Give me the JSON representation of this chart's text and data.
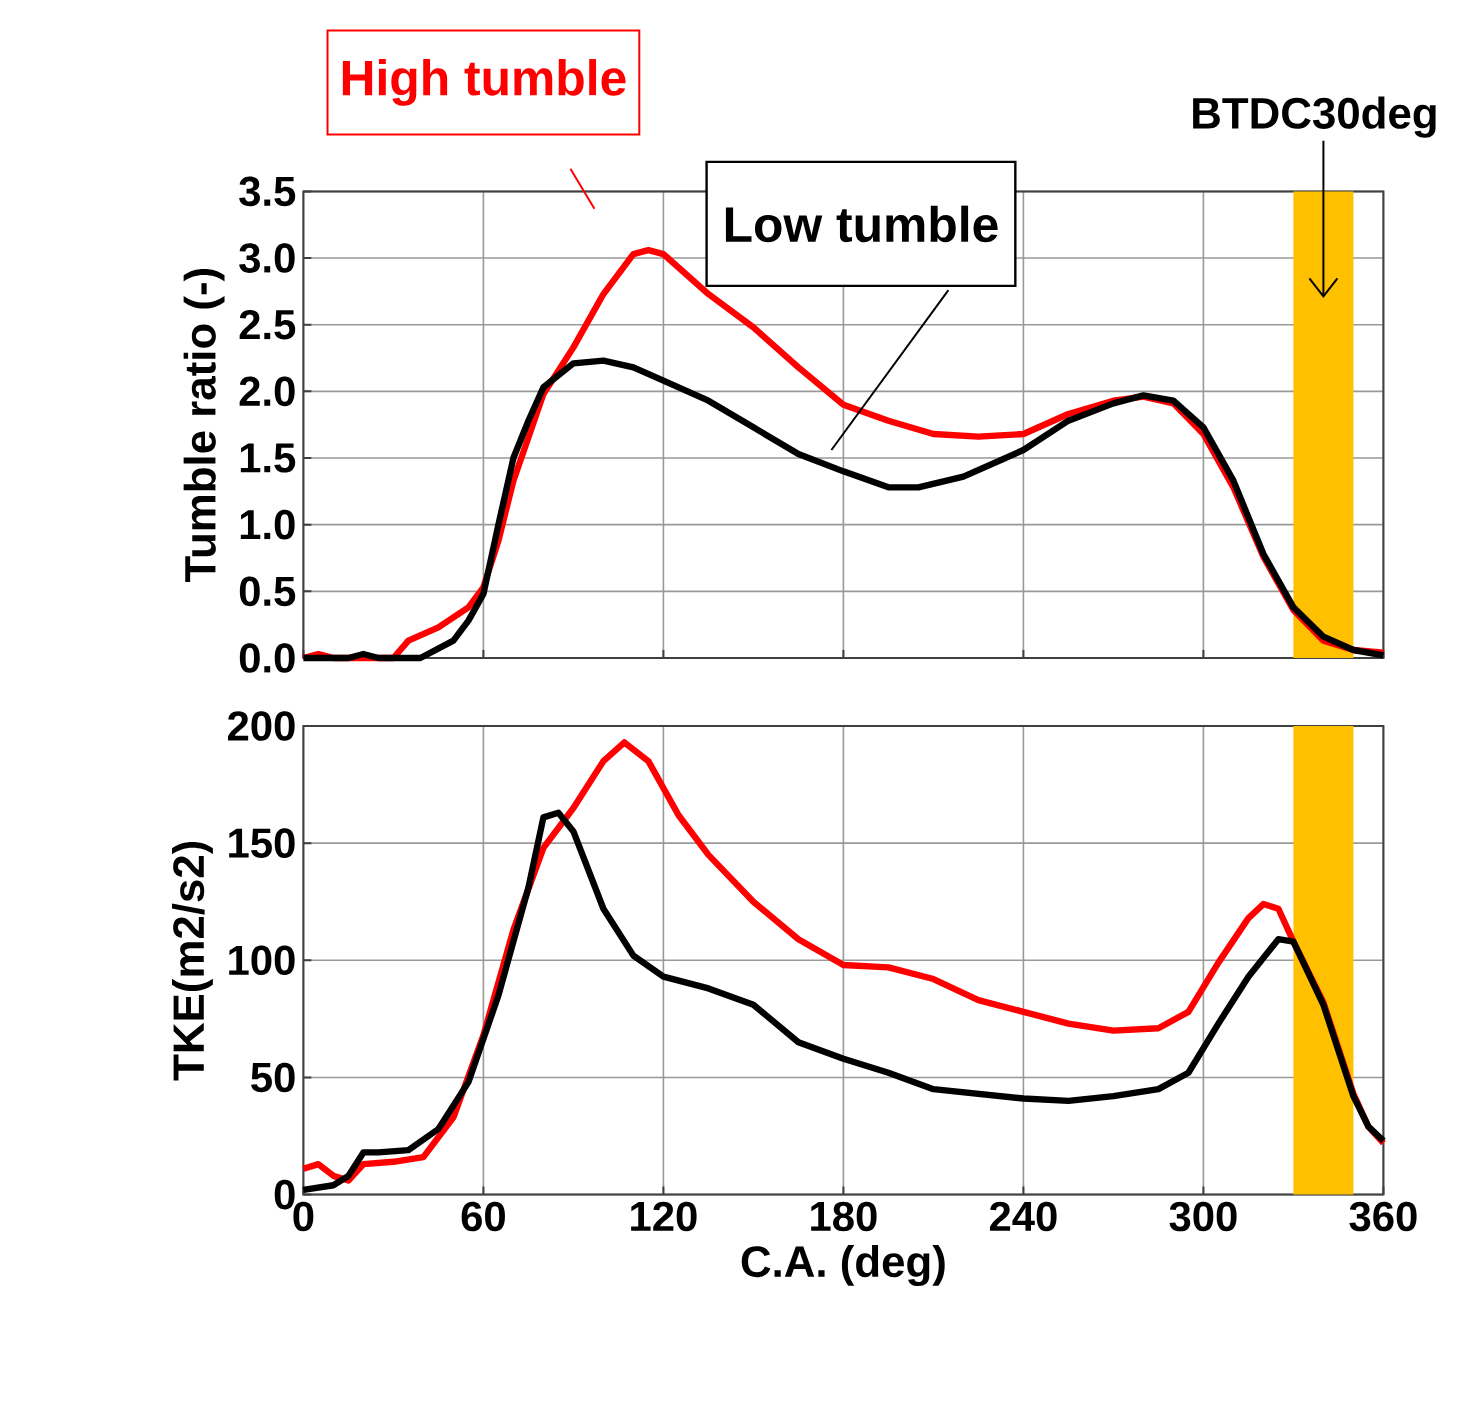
{
  "chart_data": [
    {
      "type": "line",
      "ylabel": "Tumble ratio (-)",
      "xlim": [
        0,
        360
      ],
      "xticks": [
        0,
        60,
        120,
        180,
        240,
        300,
        360
      ],
      "ylim": [
        0,
        3.5
      ],
      "yticks": [
        {
          "value": 0,
          "label": "0.0"
        },
        {
          "value": 0.5,
          "label": "0.5"
        },
        {
          "value": 1,
          "label": "1.0"
        },
        {
          "value": 1.5,
          "label": "1.5"
        },
        {
          "value": 2,
          "label": "2.0"
        },
        {
          "value": 2.5,
          "label": "2.5"
        },
        {
          "value": 3,
          "label": "3.0"
        },
        {
          "value": 3.5,
          "label": "3.5"
        }
      ],
      "tick_labels": "y",
      "grid": true,
      "legend": false,
      "marker": "none",
      "line_style": "solid",
      "bands": [
        {
          "axis": "x",
          "from": 330,
          "to": 350,
          "label": "BTDC30deg",
          "color": "#ffc000"
        }
      ],
      "series": [
        {
          "name": "High tumble",
          "color": "#ff0000",
          "x": [
            0,
            5,
            10,
            25,
            30,
            35,
            45,
            55,
            60,
            65,
            70,
            80,
            90,
            100,
            110,
            115,
            120,
            135,
            150,
            165,
            180,
            195,
            210,
            225,
            240,
            255,
            270,
            280,
            290,
            300,
            310,
            320,
            330,
            340,
            350,
            360
          ],
          "values": [
            0,
            0.03,
            0,
            0,
            0,
            0.13,
            0.23,
            0.38,
            0.53,
            0.88,
            1.33,
            1.98,
            2.33,
            2.73,
            3.03,
            3.06,
            3.03,
            2.73,
            2.48,
            2.18,
            1.9,
            1.78,
            1.68,
            1.66,
            1.68,
            1.83,
            1.93,
            1.96,
            1.91,
            1.68,
            1.28,
            0.76,
            0.36,
            0.13,
            0.06,
            0.04
          ]
        },
        {
          "name": "Low tumble",
          "color": "#000000",
          "x": [
            0,
            15,
            20,
            25,
            39,
            50,
            55,
            60,
            65,
            70,
            75,
            80,
            90,
            100,
            110,
            120,
            135,
            150,
            165,
            180,
            195,
            205,
            220,
            240,
            255,
            270,
            280,
            290,
            300,
            310,
            320,
            330,
            340,
            350,
            360
          ],
          "values": [
            0,
            0,
            0.03,
            0,
            0,
            0.13,
            0.28,
            0.48,
            1.0,
            1.5,
            1.78,
            2.03,
            2.21,
            2.23,
            2.18,
            2.08,
            1.93,
            1.73,
            1.53,
            1.4,
            1.28,
            1.28,
            1.36,
            1.56,
            1.78,
            1.91,
            1.97,
            1.93,
            1.73,
            1.33,
            0.78,
            0.38,
            0.16,
            0.06,
            0.02
          ]
        }
      ]
    },
    {
      "type": "line",
      "xlabel": "C.A. (deg)",
      "ylabel": "TKE(m2/s2)",
      "xlim": [
        0,
        360
      ],
      "xticks": [
        0,
        60,
        120,
        180,
        240,
        300,
        360
      ],
      "ylim": [
        0,
        200
      ],
      "yticks": [
        0,
        50,
        100,
        150,
        200
      ],
      "grid": true,
      "legend": false,
      "marker": "none",
      "line_style": "solid",
      "bands": [
        {
          "axis": "x",
          "from": 330,
          "to": 350,
          "color": "#ffc000"
        }
      ],
      "series": [
        {
          "color": "#ff0000",
          "x": [
            0,
            5,
            10,
            15,
            20,
            30,
            40,
            50,
            60,
            70,
            80,
            90,
            100,
            107,
            115,
            125,
            135,
            150,
            165,
            180,
            195,
            210,
            225,
            240,
            255,
            270,
            285,
            295,
            305,
            315,
            320,
            325,
            330,
            340,
            350,
            355,
            360
          ],
          "values": [
            11,
            13,
            8,
            6,
            13,
            14,
            16,
            33,
            68,
            113,
            148,
            165,
            185,
            193,
            185,
            162,
            145,
            125,
            109,
            98,
            97,
            92,
            83,
            78,
            73,
            70,
            71,
            78,
            99,
            118,
            124,
            122,
            108,
            82,
            43,
            29,
            22
          ]
        },
        {
          "color": "#000000",
          "x": [
            0,
            10,
            15,
            20,
            25,
            35,
            45,
            55,
            65,
            75,
            80,
            85,
            90,
            100,
            110,
            120,
            135,
            150,
            165,
            180,
            195,
            210,
            240,
            255,
            270,
            285,
            295,
            305,
            315,
            325,
            330,
            340,
            350,
            355,
            360
          ],
          "values": [
            2,
            4,
            8,
            18,
            18,
            19,
            28,
            48,
            85,
            131,
            161,
            163,
            155,
            122,
            102,
            93,
            88,
            81,
            65,
            58,
            52,
            45,
            41,
            40,
            42,
            45,
            52,
            73,
            93,
            109,
            108,
            81,
            42,
            29,
            23
          ]
        }
      ]
    }
  ]
}
